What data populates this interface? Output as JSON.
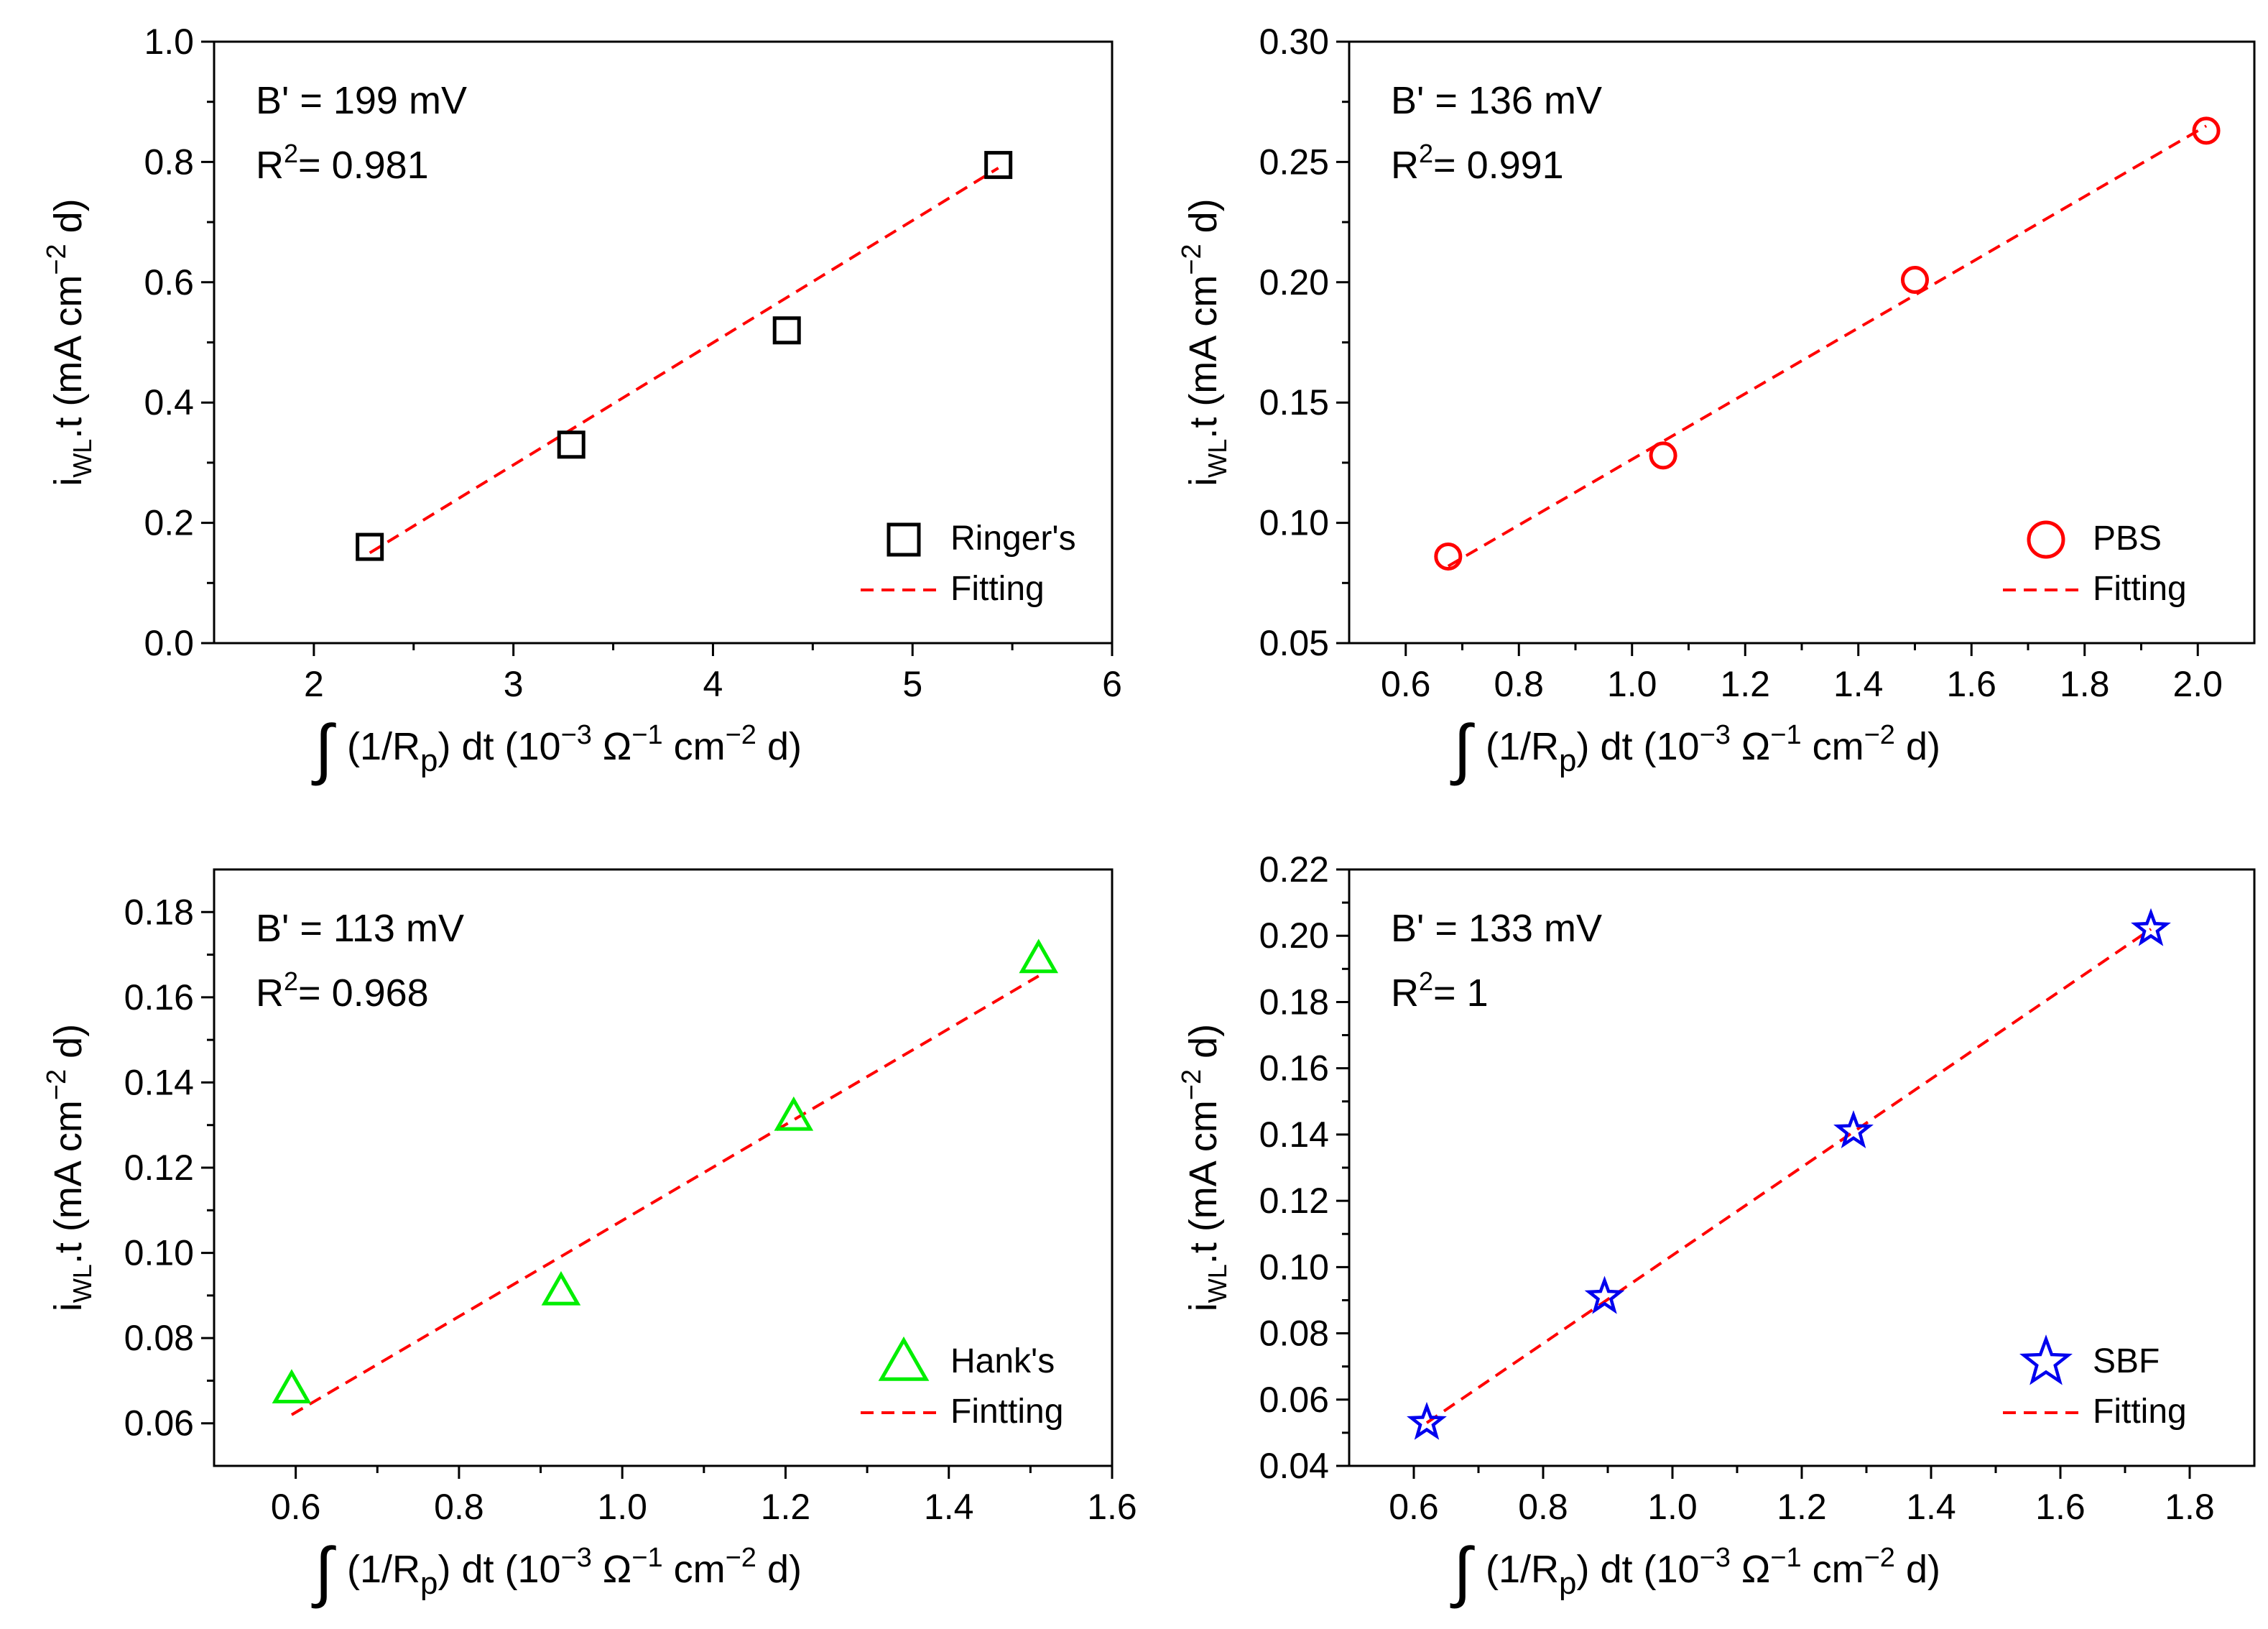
{
  "chart_data": [
    {
      "type": "scatter",
      "panel": "top-left",
      "color": "#000000",
      "marker": "square",
      "xlim": [
        1.5,
        6
      ],
      "ylim": [
        0.0,
        1.0
      ],
      "xticks": [
        "2",
        "3",
        "4",
        "5",
        "6"
      ],
      "xtick_values": [
        2,
        3,
        4,
        5,
        6
      ],
      "yticks": [
        "0.0",
        "0.2",
        "0.4",
        "0.6",
        "0.8",
        "1.0"
      ],
      "ytick_values": [
        0.0,
        0.2,
        0.4,
        0.6,
        0.8,
        1.0
      ],
      "xlabel": {
        "prefix": "(1/R",
        "sub": "p",
        "mid": ") dt (10",
        "sup1": "−3",
        "mid2": " Ω",
        "sup2": "−1",
        "mid3": " cm",
        "sup3": "−2",
        "suffix": " d)"
      },
      "ylabel": {
        "prefix": "i",
        "sub": "WL",
        "mid": ".t (mA cm",
        "sup": "−2",
        "suffix": " d)"
      },
      "series": [
        {
          "name": "Ringer's",
          "x": [
            2.28,
            3.29,
            4.37,
            5.43
          ],
          "y": [
            0.16,
            0.33,
            0.52,
            0.795
          ]
        },
        {
          "name": "Fitting",
          "x": [
            2.28,
            5.43
          ],
          "y": [
            0.15,
            0.79
          ]
        }
      ],
      "annotation": {
        "b_prime": "B' = 199 mV",
        "r2_prefix": "R",
        "r2_sup": "2",
        "r2_value": "= 0.981"
      },
      "legend": {
        "position": "bottom-right",
        "markers": "Ringer's",
        "line": "Fitting"
      }
    },
    {
      "type": "scatter",
      "panel": "top-right",
      "color": "#ff0000",
      "marker": "circle",
      "xlim": [
        0.5,
        2.1
      ],
      "ylim": [
        0.05,
        0.3
      ],
      "xticks": [
        "0.6",
        "0.8",
        "1.0",
        "1.2",
        "1.4",
        "1.6",
        "1.8",
        "2.0"
      ],
      "xtick_values": [
        0.6,
        0.8,
        1.0,
        1.2,
        1.4,
        1.6,
        1.8,
        2.0
      ],
      "yticks": [
        "0.05",
        "0.10",
        "0.15",
        "0.20",
        "0.25",
        "0.30"
      ],
      "ytick_values": [
        0.05,
        0.1,
        0.15,
        0.2,
        0.25,
        0.3
      ],
      "xlabel": {
        "prefix": "(1/R",
        "sub": "p",
        "mid": ") dt (10",
        "sup1": "−3",
        "mid2": " Ω",
        "sup2": "−1",
        "mid3": " cm",
        "sup3": "−2",
        "suffix": " d)"
      },
      "ylabel": {
        "prefix": "i",
        "sub": "WL",
        "mid": ".t (mA cm",
        "sup": "−2",
        "suffix": " d)"
      },
      "series": [
        {
          "name": "PBS",
          "x": [
            0.675,
            1.055,
            1.5,
            2.015
          ],
          "y": [
            0.086,
            0.128,
            0.201,
            0.263
          ]
        },
        {
          "name": "Fitting",
          "x": [
            0.675,
            2.015
          ],
          "y": [
            0.082,
            0.265
          ]
        }
      ],
      "annotation": {
        "b_prime": "B' = 136 mV",
        "r2_prefix": "R",
        "r2_sup": "2",
        "r2_value": "= 0.991"
      },
      "legend": {
        "position": "bottom-right",
        "markers": "PBS",
        "line": "Fitting"
      }
    },
    {
      "type": "scatter",
      "panel": "bottom-left",
      "color": "#00ee00",
      "marker": "triangle",
      "xlim": [
        0.5,
        1.6
      ],
      "ylim": [
        0.05,
        0.19
      ],
      "xticks": [
        "0.6",
        "0.8",
        "1.0",
        "1.2",
        "1.4",
        "1.6"
      ],
      "xtick_values": [
        0.6,
        0.8,
        1.0,
        1.2,
        1.4,
        1.6
      ],
      "yticks": [
        "0.06",
        "0.08",
        "0.10",
        "0.12",
        "0.14",
        "0.16",
        "0.18"
      ],
      "ytick_values": [
        0.06,
        0.08,
        0.1,
        0.12,
        0.14,
        0.16,
        0.18
      ],
      "xlabel": {
        "prefix": "(1/R",
        "sub": "p",
        "mid": ") dt (10",
        "sup1": "−3",
        "mid2": " Ω",
        "sup2": "−1",
        "mid3": " cm",
        "sup3": "−2",
        "suffix": " d)"
      },
      "ylabel": {
        "prefix": "i",
        "sub": "WL",
        "mid": ".t (mA cm",
        "sup": "−2",
        "suffix": " d)"
      },
      "series": [
        {
          "name": "Hank's",
          "x": [
            0.595,
            0.925,
            1.21,
            1.51
          ],
          "y": [
            0.068,
            0.091,
            0.132,
            0.169
          ]
        },
        {
          "name": "Fintting",
          "x": [
            0.595,
            1.51
          ],
          "y": [
            0.062,
            0.165
          ]
        }
      ],
      "annotation": {
        "b_prime": "B' = 113 mV",
        "r2_prefix": "R",
        "r2_sup": "2",
        "r2_value": "= 0.968"
      },
      "legend": {
        "position": "bottom-right",
        "markers": "Hank's",
        "line": "Fintting"
      }
    },
    {
      "type": "scatter",
      "panel": "bottom-right",
      "color": "#0000ee",
      "marker": "star",
      "xlim": [
        0.5,
        1.9
      ],
      "ylim": [
        0.04,
        0.22
      ],
      "xticks": [
        "0.6",
        "0.8",
        "1.0",
        "1.2",
        "1.4",
        "1.6",
        "1.8"
      ],
      "xtick_values": [
        0.6,
        0.8,
        1.0,
        1.2,
        1.4,
        1.6,
        1.8
      ],
      "yticks": [
        "0.04",
        "0.06",
        "0.08",
        "0.10",
        "0.12",
        "0.14",
        "0.16",
        "0.18",
        "0.20",
        "0.22"
      ],
      "ytick_values": [
        0.04,
        0.06,
        0.08,
        0.1,
        0.12,
        0.14,
        0.16,
        0.18,
        0.2,
        0.22
      ],
      "xlabel": {
        "prefix": "(1/R",
        "sub": "p",
        "mid": ") dt (10",
        "sup1": "−3",
        "mid2": " Ω",
        "sup2": "−1",
        "mid3": " cm",
        "sup3": "−2",
        "suffix": " d)"
      },
      "ylabel": {
        "prefix": "i",
        "sub": "WL",
        "mid": ".t (mA cm",
        "sup": "−2",
        "suffix": " d)"
      },
      "series": [
        {
          "name": "SBF",
          "x": [
            0.62,
            0.895,
            1.28,
            1.74
          ],
          "y": [
            0.053,
            0.091,
            0.141,
            0.202
          ]
        },
        {
          "name": "Fitting",
          "x": [
            0.62,
            1.74
          ],
          "y": [
            0.053,
            0.202
          ]
        }
      ],
      "annotation": {
        "b_prime": "B' = 133 mV",
        "r2_prefix": "R",
        "r2_sup": "2",
        "r2_value": "= 1"
      },
      "legend": {
        "position": "bottom-right",
        "markers": "SBF",
        "line": "Fitting"
      }
    }
  ]
}
